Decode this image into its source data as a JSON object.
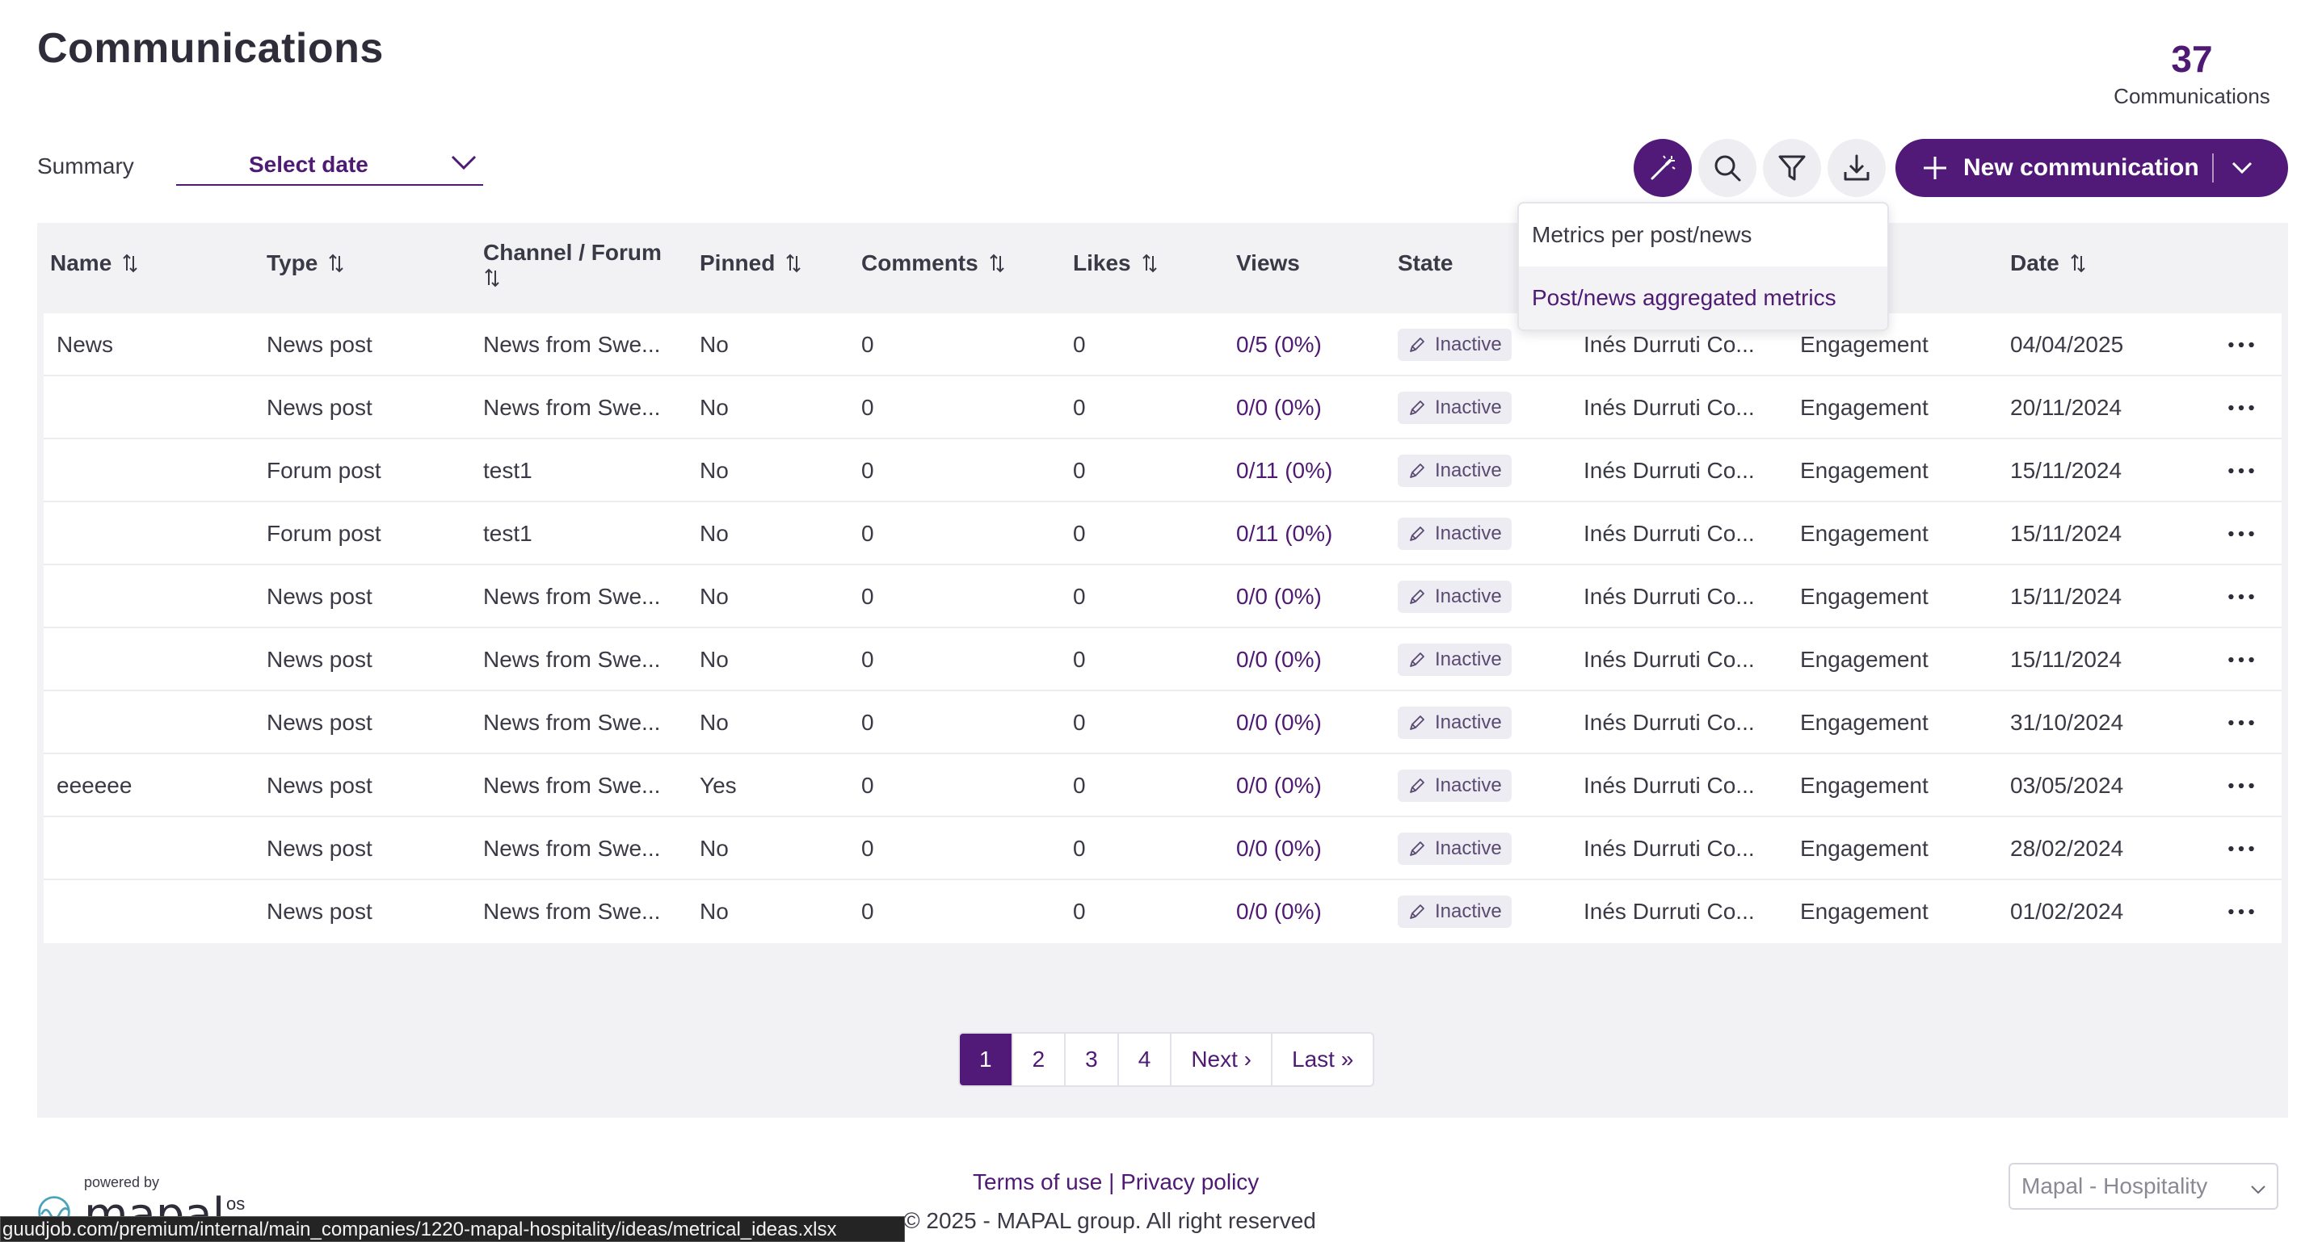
{
  "page": {
    "title": "Communications",
    "count_value": "37",
    "count_label": "Communications"
  },
  "filters": {
    "summary_label": "Summary",
    "date_select_label": "Select date"
  },
  "toolbar": {
    "new_button_label": "New communication"
  },
  "dropdown": {
    "items": [
      "Metrics per post/news",
      "Post/news aggregated metrics"
    ]
  },
  "table": {
    "headers": [
      "Name",
      "Type",
      "Channel / Forum",
      "Pinned",
      "Comments",
      "Likes",
      "Views",
      "State",
      "Date"
    ],
    "rows": [
      {
        "name": "News",
        "type": "News post",
        "channel": "News from Swe...",
        "pinned": "No",
        "comments": "0",
        "likes": "0",
        "views": "0/5 (0%)",
        "state": "Inactive",
        "author": "Inés Durruti Co...",
        "category": "Engagement",
        "date": "04/04/2025"
      },
      {
        "name": "",
        "type": "News post",
        "channel": "News from Swe...",
        "pinned": "No",
        "comments": "0",
        "likes": "0",
        "views": "0/0 (0%)",
        "state": "Inactive",
        "author": "Inés Durruti Co...",
        "category": "Engagement",
        "date": "20/11/2024"
      },
      {
        "name": "",
        "type": "Forum post",
        "channel": "test1",
        "pinned": "No",
        "comments": "0",
        "likes": "0",
        "views": "0/11 (0%)",
        "state": "Inactive",
        "author": "Inés Durruti Co...",
        "category": "Engagement",
        "date": "15/11/2024"
      },
      {
        "name": "",
        "type": "Forum post",
        "channel": "test1",
        "pinned": "No",
        "comments": "0",
        "likes": "0",
        "views": "0/11 (0%)",
        "state": "Inactive",
        "author": "Inés Durruti Co...",
        "category": "Engagement",
        "date": "15/11/2024"
      },
      {
        "name": "",
        "type": "News post",
        "channel": "News from Swe...",
        "pinned": "No",
        "comments": "0",
        "likes": "0",
        "views": "0/0 (0%)",
        "state": "Inactive",
        "author": "Inés Durruti Co...",
        "category": "Engagement",
        "date": "15/11/2024"
      },
      {
        "name": "",
        "type": "News post",
        "channel": "News from Swe...",
        "pinned": "No",
        "comments": "0",
        "likes": "0",
        "views": "0/0 (0%)",
        "state": "Inactive",
        "author": "Inés Durruti Co...",
        "category": "Engagement",
        "date": "15/11/2024"
      },
      {
        "name": "",
        "type": "News post",
        "channel": "News from Swe...",
        "pinned": "No",
        "comments": "0",
        "likes": "0",
        "views": "0/0 (0%)",
        "state": "Inactive",
        "author": "Inés Durruti Co...",
        "category": "Engagement",
        "date": "31/10/2024"
      },
      {
        "name": "eeeeee",
        "type": "News post",
        "channel": "News from Swe...",
        "pinned": "Yes",
        "comments": "0",
        "likes": "0",
        "views": "0/0 (0%)",
        "state": "Inactive",
        "author": "Inés Durruti Co...",
        "category": "Engagement",
        "date": "03/05/2024"
      },
      {
        "name": "",
        "type": "News post",
        "channel": "News from Swe...",
        "pinned": "No",
        "comments": "0",
        "likes": "0",
        "views": "0/0 (0%)",
        "state": "Inactive",
        "author": "Inés Durruti Co...",
        "category": "Engagement",
        "date": "28/02/2024"
      },
      {
        "name": "",
        "type": "News post",
        "channel": "News from Swe...",
        "pinned": "No",
        "comments": "0",
        "likes": "0",
        "views": "0/0 (0%)",
        "state": "Inactive",
        "author": "Inés Durruti Co...",
        "category": "Engagement",
        "date": "01/02/2024"
      }
    ]
  },
  "pagination": {
    "pages": [
      "1",
      "2",
      "3",
      "4"
    ],
    "current": "1",
    "next_label": "Next ›",
    "last_label": "Last »"
  },
  "footer": {
    "terms_label": "Terms of use",
    "separator": "|",
    "privacy_label": "Privacy policy",
    "copyright": "© 2025 - MAPAL group. All right reserved",
    "powered_by": "powered by",
    "logo_text": "mapal",
    "logo_suffix": "os",
    "company_select_value": "Mapal - Hospitality",
    "status_url": "guudjob.com/premium/internal/main_companies/1220-mapal-hospitality/ideas/metrical_ideas.xlsx"
  },
  "colors": {
    "accent": "#521a78",
    "accent_text": "#4f1a74",
    "table_bg": "#f2f2f5"
  }
}
